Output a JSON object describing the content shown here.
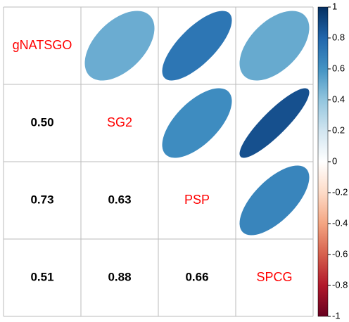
{
  "chart_data": {
    "type": "corrplot",
    "variables": [
      "gNATSGO",
      "SG2",
      "PSP",
      "SPCG"
    ],
    "values": [
      [
        null,
        null,
        null,
        null
      ],
      [
        0.5,
        null,
        null,
        null
      ],
      [
        0.73,
        0.63,
        null,
        null
      ],
      [
        0.51,
        0.88,
        0.66,
        null
      ]
    ],
    "value_labels": [
      [
        null,
        null,
        null,
        null
      ],
      [
        "0.50",
        null,
        null,
        null
      ],
      [
        "0.73",
        "0.63",
        null,
        null
      ],
      [
        "0.51",
        "0.88",
        "0.66",
        null
      ]
    ],
    "variable_label_color": "#ff0000",
    "value_label_color": "#000000",
    "palette": [
      "#67001F",
      "#B2182B",
      "#D6604D",
      "#F4A582",
      "#FDDBC7",
      "#FFFFFF",
      "#D1E5F0",
      "#92C5DE",
      "#4393C3",
      "#2166AC",
      "#053061"
    ],
    "colorbar_lim": [
      -1,
      1
    ],
    "colorbar_ticks": [
      1,
      0.8,
      0.6,
      0.4,
      0.2,
      0,
      -0.2,
      -0.4,
      -0.6,
      -0.8,
      -1
    ]
  }
}
